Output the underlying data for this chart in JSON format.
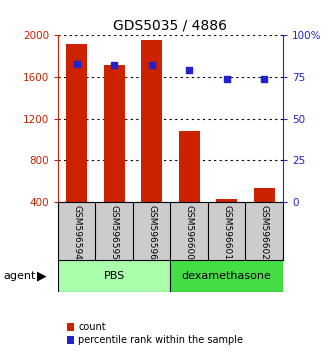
{
  "title": "GDS5035 / 4886",
  "categories": [
    "GSM596594",
    "GSM596595",
    "GSM596596",
    "GSM596600",
    "GSM596601",
    "GSM596602"
  ],
  "bar_values": [
    1920,
    1720,
    1960,
    1080,
    430,
    530
  ],
  "bar_bottom": 400,
  "percentile_values": [
    83,
    82,
    82,
    79,
    74,
    74
  ],
  "bar_color": "#cc2200",
  "dot_color": "#2222cc",
  "ylim_left": [
    400,
    2000
  ],
  "ylim_right": [
    0,
    100
  ],
  "yticks_left": [
    400,
    800,
    1200,
    1600,
    2000
  ],
  "yticks_right": [
    0,
    25,
    50,
    75,
    100
  ],
  "yticklabels_right": [
    "0",
    "25",
    "50",
    "75",
    "100%"
  ],
  "groups": [
    {
      "label": "PBS",
      "indices": [
        0,
        1,
        2
      ],
      "color": "#aaffaa"
    },
    {
      "label": "dexamethasone",
      "indices": [
        3,
        4,
        5
      ],
      "color": "#44dd44"
    }
  ],
  "agent_label": "agent",
  "legend_count_label": "count",
  "legend_pct_label": "percentile rank within the sample",
  "bg_color": "#ffffff",
  "plot_area_bg": "#ffffff",
  "label_area_bg": "#cccccc",
  "title_color": "#000000",
  "left_axis_color": "#cc2200",
  "right_axis_color": "#2222cc"
}
